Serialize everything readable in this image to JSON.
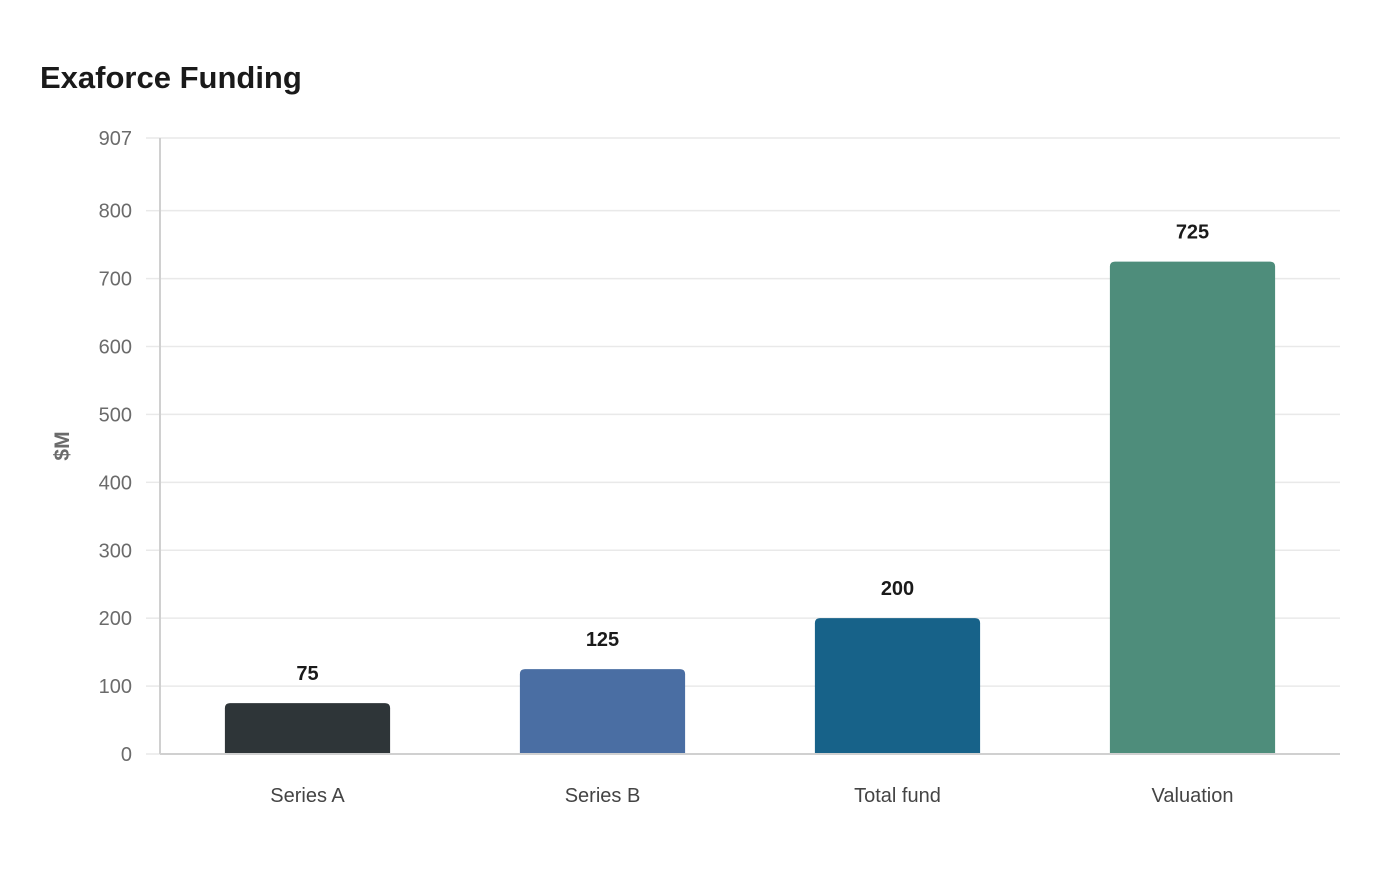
{
  "chart_data": {
    "type": "bar",
    "title": "Exaforce Funding",
    "xlabel": "",
    "ylabel": "$M",
    "categories": [
      "Series A",
      "Series B",
      "Total fund",
      "Valuation"
    ],
    "values": [
      75,
      125,
      200,
      725
    ],
    "colors": [
      "#2e3538",
      "#4a6ea3",
      "#176289",
      "#4e8d7b"
    ],
    "ylim": [
      0,
      907
    ],
    "yticks": [
      0,
      100,
      200,
      300,
      400,
      500,
      600,
      700,
      800,
      907
    ],
    "grid": true,
    "legend": "none",
    "data_labels": true
  }
}
